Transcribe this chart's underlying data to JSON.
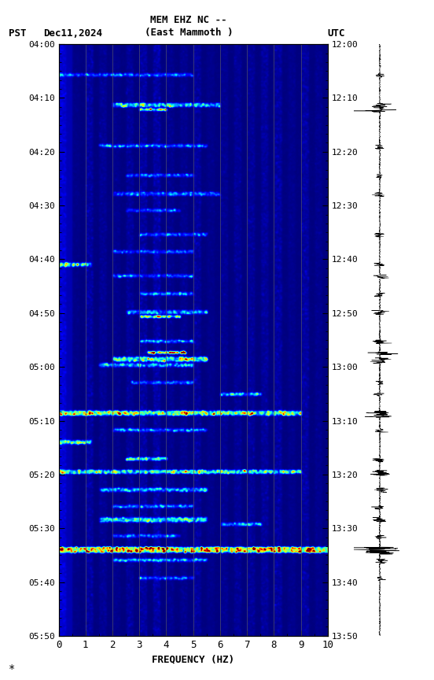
{
  "title_line1": "MEM EHZ NC --",
  "title_line2": "(East Mammoth )",
  "left_label": "PST",
  "right_label": "UTC",
  "date_label": "Dec11,2024",
  "xlabel": "FREQUENCY (HZ)",
  "left_yticks": [
    "04:00",
    "04:10",
    "04:20",
    "04:30",
    "04:40",
    "04:50",
    "05:00",
    "05:10",
    "05:20",
    "05:30",
    "05:40",
    "05:50"
  ],
  "right_yticks": [
    "12:00",
    "12:10",
    "12:20",
    "12:30",
    "12:40",
    "12:50",
    "13:00",
    "13:10",
    "13:20",
    "13:30",
    "13:40",
    "13:50"
  ],
  "xticks": [
    0,
    1,
    2,
    3,
    4,
    5,
    6,
    7,
    8,
    9,
    10
  ],
  "xlim": [
    0,
    10
  ],
  "fig_width": 5.52,
  "fig_height": 8.64,
  "colormap": "jet",
  "vertical_lines_x": [
    1,
    2,
    3,
    4,
    5,
    6,
    7,
    8,
    9
  ],
  "n_time": 660,
  "n_freq": 300,
  "total_minutes": 110
}
